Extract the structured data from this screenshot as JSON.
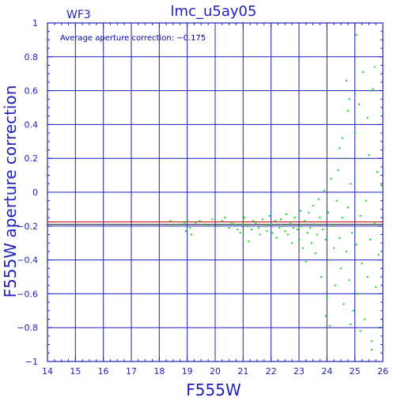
{
  "chart_data": {
    "type": "scatter",
    "title": "lmc_u5ay05",
    "corner_label": "WF3",
    "annotation": "Average aperture correction: −0.175",
    "xlabel": "F555W",
    "ylabel": "F555W aperture correction",
    "xlim": [
      14,
      26
    ],
    "ylim": [
      -1,
      1
    ],
    "xticks": [
      14,
      15,
      16,
      17,
      18,
      19,
      20,
      21,
      22,
      23,
      24,
      25,
      26
    ],
    "yticks": [
      -1,
      -0.8,
      -0.6,
      -0.4,
      -0.2,
      0,
      0.2,
      0.4,
      0.6,
      0.8,
      1
    ],
    "ytick_labels": [
      "−1",
      "−0.8",
      "−0.6",
      "−0.4",
      "−0.2",
      "0",
      "0.2",
      "0.4",
      "0.6",
      "0.8",
      "1"
    ],
    "grid": true,
    "reference_lines": [
      {
        "y": -0.175,
        "color": "#cc0000"
      },
      {
        "y": -0.19,
        "color": "#222222"
      }
    ],
    "series": [
      {
        "color": "#00dd00",
        "points": [
          [
            18.4,
            -0.17
          ],
          [
            18.5,
            -0.2
          ],
          [
            18.7,
            -0.19
          ],
          [
            18.9,
            -0.18
          ],
          [
            18.95,
            -0.23
          ],
          [
            19.0,
            -0.17
          ],
          [
            19.1,
            -0.21
          ],
          [
            19.15,
            -0.25
          ],
          [
            19.3,
            -0.18
          ],
          [
            19.45,
            -0.17
          ],
          [
            19.6,
            -0.19
          ],
          [
            19.75,
            -0.2
          ],
          [
            19.9,
            -0.16
          ],
          [
            20.1,
            -0.2
          ],
          [
            20.25,
            -0.17
          ],
          [
            20.35,
            -0.15
          ],
          [
            20.5,
            -0.21
          ],
          [
            20.6,
            -0.18
          ],
          [
            20.7,
            -0.19
          ],
          [
            20.8,
            -0.22
          ],
          [
            20.9,
            -0.24
          ],
          [
            21.0,
            -0.19
          ],
          [
            21.05,
            -0.15
          ],
          [
            21.15,
            -0.2
          ],
          [
            21.2,
            -0.29
          ],
          [
            21.3,
            -0.22
          ],
          [
            21.35,
            -0.17
          ],
          [
            21.45,
            -0.18
          ],
          [
            21.55,
            -0.21
          ],
          [
            21.6,
            -0.25
          ],
          [
            21.7,
            -0.16
          ],
          [
            21.8,
            -0.2
          ],
          [
            21.85,
            -0.23
          ],
          [
            21.95,
            -0.14
          ],
          [
            22.0,
            -0.19
          ],
          [
            22.05,
            -0.24
          ],
          [
            22.15,
            -0.17
          ],
          [
            22.2,
            -0.27
          ],
          [
            22.3,
            -0.21
          ],
          [
            22.35,
            -0.16
          ],
          [
            22.45,
            -0.2
          ],
          [
            22.5,
            -0.23
          ],
          [
            22.55,
            -0.13
          ],
          [
            22.6,
            -0.25
          ],
          [
            22.7,
            -0.18
          ],
          [
            22.75,
            -0.3
          ],
          [
            22.8,
            -0.21
          ],
          [
            22.85,
            -0.15
          ],
          [
            22.95,
            -0.22
          ],
          [
            23.0,
            -0.28
          ],
          [
            23.05,
            -0.11
          ],
          [
            23.1,
            -0.2
          ],
          [
            23.15,
            -0.33
          ],
          [
            23.2,
            -0.17
          ],
          [
            23.25,
            -0.41
          ],
          [
            23.3,
            -0.24
          ],
          [
            23.35,
            -0.12
          ],
          [
            23.4,
            -0.21
          ],
          [
            23.45,
            -0.3
          ],
          [
            23.5,
            -0.08
          ],
          [
            23.55,
            -0.19
          ],
          [
            23.6,
            -0.36
          ],
          [
            23.65,
            -0.25
          ],
          [
            23.7,
            -0.04
          ],
          [
            23.75,
            -0.15
          ],
          [
            23.8,
            -0.5
          ],
          [
            23.85,
            -0.22
          ],
          [
            23.9,
            0.01
          ],
          [
            23.95,
            -0.28
          ],
          [
            24.0,
            -0.62
          ],
          [
            24.05,
            -0.12
          ],
          [
            24.1,
            -0.4
          ],
          [
            24.15,
            0.08
          ],
          [
            24.2,
            -0.2
          ],
          [
            24.25,
            -0.33
          ],
          [
            24.3,
            -0.55
          ],
          [
            24.35,
            -0.05
          ],
          [
            24.4,
            0.13
          ],
          [
            24.45,
            -0.27
          ],
          [
            24.5,
            -0.45
          ],
          [
            24.55,
            -0.15
          ],
          [
            24.6,
            -0.66
          ],
          [
            24.65,
            0.2
          ],
          [
            24.7,
            -0.35
          ],
          [
            24.75,
            -0.09
          ],
          [
            24.8,
            -0.52
          ],
          [
            24.85,
            0.05
          ],
          [
            24.9,
            -0.24
          ],
          [
            24.95,
            -0.7
          ],
          [
            25.0,
            0.35
          ],
          [
            25.05,
            -0.31
          ],
          [
            25.1,
            -0.6
          ],
          [
            25.15,
            0.52
          ],
          [
            25.2,
            -0.14
          ],
          [
            25.25,
            -0.42
          ],
          [
            25.3,
            0.71
          ],
          [
            25.35,
            -0.75
          ],
          [
            25.4,
            -0.05
          ],
          [
            25.45,
            -0.5
          ],
          [
            25.5,
            0.22
          ],
          [
            25.55,
            -0.28
          ],
          [
            25.6,
            -0.88
          ],
          [
            25.65,
            0.61
          ],
          [
            25.7,
            -0.18
          ],
          [
            25.75,
            -0.56
          ],
          [
            25.8,
            0.12
          ],
          [
            25.85,
            -0.37
          ],
          [
            25.9,
            -0.8
          ],
          [
            25.95,
            0.04
          ],
          [
            24.7,
            0.66
          ],
          [
            24.8,
            0.55
          ],
          [
            24.75,
            0.48
          ],
          [
            24.55,
            0.32
          ],
          [
            24.45,
            0.26
          ],
          [
            25.05,
            0.93
          ],
          [
            25.55,
            0.6
          ],
          [
            25.7,
            0.74
          ],
          [
            25.45,
            0.44
          ],
          [
            24.1,
            -0.79
          ],
          [
            23.95,
            -0.73
          ],
          [
            24.85,
            -0.78
          ],
          [
            25.2,
            -0.82
          ],
          [
            25.6,
            -0.93
          ]
        ]
      }
    ]
  }
}
